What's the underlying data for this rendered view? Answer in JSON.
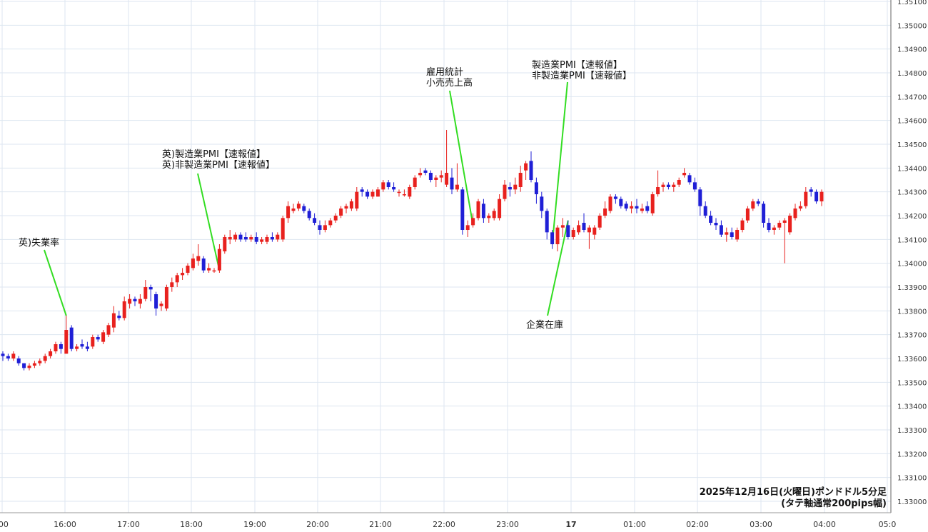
{
  "chart_data": {
    "type": "candlestick",
    "title": "2025年12月16日(火曜日)ポンドドル5分足",
    "subtitle": "(タテ軸通常200pips幅)",
    "y_range": [
      1.3295,
      1.351
    ],
    "y_ticks": [
      "1.33000",
      "1.33100",
      "1.33200",
      "1.33300",
      "1.33400",
      "1.33500",
      "1.33600",
      "1.33700",
      "1.33800",
      "1.33900",
      "1.34000",
      "1.34100",
      "1.34200",
      "1.34300",
      "1.34400",
      "1.34500",
      "1.34600",
      "1.34700",
      "1.34800",
      "1.34900",
      "1.35000",
      "1.35100"
    ],
    "x_ticks": [
      ":00",
      "16:00",
      "17:00",
      "18:00",
      "19:00",
      "20:00",
      "21:00",
      "22:00",
      "23:00",
      "17",
      "01:00",
      "02:00",
      "03:00",
      "04:00",
      "05:0"
    ],
    "interval_minutes": 5,
    "colors": {
      "up": "#e8211e",
      "down": "#1f1fd6",
      "grid": "#dde6f0",
      "annotation_line": "#33dd22"
    },
    "candles": [
      [
        1.3362,
        1.3363,
        1.3359,
        1.3361
      ],
      [
        1.3361,
        1.3362,
        1.3359,
        1.336
      ],
      [
        1.336,
        1.3363,
        1.3359,
        1.3362
      ],
      [
        1.336,
        1.3361,
        1.3357,
        1.3358
      ],
      [
        1.3358,
        1.3358,
        1.3355,
        1.3356
      ],
      [
        1.3356,
        1.3358,
        1.3355,
        1.3357
      ],
      [
        1.3357,
        1.3359,
        1.3356,
        1.3358
      ],
      [
        1.3358,
        1.336,
        1.3357,
        1.3359
      ],
      [
        1.3359,
        1.3362,
        1.3358,
        1.3361
      ],
      [
        1.3361,
        1.3364,
        1.336,
        1.3363
      ],
      [
        1.3363,
        1.3367,
        1.3362,
        1.3366
      ],
      [
        1.3366,
        1.3367,
        1.3362,
        1.3364
      ],
      [
        1.3362,
        1.3378,
        1.3362,
        1.3372
      ],
      [
        1.3373,
        1.3374,
        1.3363,
        1.3364
      ],
      [
        1.3364,
        1.3366,
        1.3363,
        1.3365
      ],
      [
        1.3366,
        1.3368,
        1.3364,
        1.3365
      ],
      [
        1.3365,
        1.3367,
        1.3363,
        1.3364
      ],
      [
        1.3365,
        1.337,
        1.3364,
        1.3369
      ],
      [
        1.3369,
        1.337,
        1.3367,
        1.3368
      ],
      [
        1.3367,
        1.3372,
        1.3366,
        1.3371
      ],
      [
        1.337,
        1.3375,
        1.3369,
        1.3374
      ],
      [
        1.3373,
        1.3382,
        1.3371,
        1.3379
      ],
      [
        1.3378,
        1.338,
        1.3376,
        1.3377
      ],
      [
        1.3377,
        1.3386,
        1.3376,
        1.3384
      ],
      [
        1.3383,
        1.3387,
        1.3381,
        1.3385
      ],
      [
        1.3385,
        1.3386,
        1.3382,
        1.3384
      ],
      [
        1.3383,
        1.3387,
        1.3381,
        1.3385
      ],
      [
        1.3385,
        1.3393,
        1.3384,
        1.339
      ],
      [
        1.339,
        1.3391,
        1.3384,
        1.3389
      ],
      [
        1.3387,
        1.3388,
        1.3378,
        1.3381
      ],
      [
        1.3382,
        1.3384,
        1.338,
        1.3383
      ],
      [
        1.3381,
        1.3391,
        1.338,
        1.339
      ],
      [
        1.339,
        1.3394,
        1.3388,
        1.3392
      ],
      [
        1.3392,
        1.3396,
        1.339,
        1.3395
      ],
      [
        1.3395,
        1.3398,
        1.3393,
        1.3396
      ],
      [
        1.3396,
        1.34,
        1.3395,
        1.3399
      ],
      [
        1.3398,
        1.3404,
        1.3397,
        1.3402
      ],
      [
        1.3401,
        1.3408,
        1.3399,
        1.3403
      ],
      [
        1.3402,
        1.3403,
        1.3396,
        1.3397
      ],
      [
        1.3397,
        1.34,
        1.3396,
        1.3398
      ],
      [
        1.3397,
        1.3398,
        1.3396,
        1.3397
      ],
      [
        1.3397,
        1.3408,
        1.3396,
        1.3406
      ],
      [
        1.3405,
        1.3412,
        1.3404,
        1.3411
      ],
      [
        1.341,
        1.3414,
        1.3408,
        1.3411
      ],
      [
        1.341,
        1.3413,
        1.3409,
        1.3412
      ],
      [
        1.3412,
        1.3413,
        1.3409,
        1.341
      ],
      [
        1.3411,
        1.3413,
        1.3409,
        1.341
      ],
      [
        1.341,
        1.3412,
        1.3409,
        1.3411
      ],
      [
        1.3411,
        1.3413,
        1.3408,
        1.3409
      ],
      [
        1.3409,
        1.3411,
        1.3408,
        1.341
      ],
      [
        1.3409,
        1.3412,
        1.3408,
        1.3411
      ],
      [
        1.3411,
        1.3413,
        1.3409,
        1.341
      ],
      [
        1.341,
        1.3413,
        1.3409,
        1.3412
      ],
      [
        1.341,
        1.342,
        1.3409,
        1.3419
      ],
      [
        1.3419,
        1.3426,
        1.3417,
        1.3424
      ],
      [
        1.3422,
        1.3425,
        1.3421,
        1.3423
      ],
      [
        1.3423,
        1.3426,
        1.3422,
        1.3425
      ],
      [
        1.3424,
        1.3425,
        1.3421,
        1.3422
      ],
      [
        1.3422,
        1.3423,
        1.3418,
        1.3419
      ],
      [
        1.3419,
        1.3421,
        1.3416,
        1.3417
      ],
      [
        1.3416,
        1.3418,
        1.3412,
        1.3414
      ],
      [
        1.3414,
        1.3418,
        1.3413,
        1.3416
      ],
      [
        1.3416,
        1.3419,
        1.3415,
        1.3418
      ],
      [
        1.3418,
        1.3421,
        1.3417,
        1.342
      ],
      [
        1.342,
        1.3424,
        1.3419,
        1.3423
      ],
      [
        1.3423,
        1.3425,
        1.3421,
        1.3424
      ],
      [
        1.3423,
        1.3427,
        1.3422,
        1.3426
      ],
      [
        1.3423,
        1.3432,
        1.3422,
        1.343
      ],
      [
        1.3431,
        1.3432,
        1.3428,
        1.343
      ],
      [
        1.343,
        1.3431,
        1.3427,
        1.3428
      ],
      [
        1.3428,
        1.3431,
        1.3427,
        1.343
      ],
      [
        1.3428,
        1.3432,
        1.3428,
        1.3431
      ],
      [
        1.3431,
        1.3435,
        1.343,
        1.3434
      ],
      [
        1.3434,
        1.3435,
        1.3431,
        1.3432
      ],
      [
        1.3432,
        1.3434,
        1.343,
        1.3431
      ],
      [
        1.343,
        1.3431,
        1.3428,
        1.343
      ],
      [
        1.3429,
        1.3431,
        1.3428,
        1.3429
      ],
      [
        1.3428,
        1.3433,
        1.3427,
        1.3432
      ],
      [
        1.3432,
        1.3437,
        1.3431,
        1.3436
      ],
      [
        1.3437,
        1.344,
        1.3436,
        1.3438
      ],
      [
        1.3439,
        1.344,
        1.3437,
        1.3438
      ],
      [
        1.3438,
        1.3439,
        1.3434,
        1.3435
      ],
      [
        1.3435,
        1.3437,
        1.3432,
        1.3436
      ],
      [
        1.3436,
        1.3439,
        1.3434,
        1.3437
      ],
      [
        1.3433,
        1.3456,
        1.3432,
        1.3438
      ],
      [
        1.3436,
        1.344,
        1.3429,
        1.3431
      ],
      [
        1.3431,
        1.3442,
        1.343,
        1.3433
      ],
      [
        1.3431,
        1.3432,
        1.3412,
        1.3414
      ],
      [
        1.3414,
        1.3418,
        1.3411,
        1.3416
      ],
      [
        1.3416,
        1.3421,
        1.3415,
        1.3419
      ],
      [
        1.3419,
        1.3427,
        1.3418,
        1.3426
      ],
      [
        1.3425,
        1.3427,
        1.3417,
        1.3419
      ],
      [
        1.3419,
        1.3421,
        1.3417,
        1.342
      ],
      [
        1.3419,
        1.3423,
        1.3418,
        1.3422
      ],
      [
        1.3419,
        1.3429,
        1.3418,
        1.3427
      ],
      [
        1.3427,
        1.3435,
        1.3426,
        1.3433
      ],
      [
        1.3432,
        1.3434,
        1.3428,
        1.3431
      ],
      [
        1.3431,
        1.3436,
        1.3429,
        1.3433
      ],
      [
        1.3432,
        1.3441,
        1.343,
        1.3438
      ],
      [
        1.3439,
        1.3443,
        1.3435,
        1.3442
      ],
      [
        1.3443,
        1.3447,
        1.3434,
        1.3435
      ],
      [
        1.3434,
        1.3436,
        1.3425,
        1.3429
      ],
      [
        1.3428,
        1.343,
        1.3419,
        1.3422
      ],
      [
        1.3422,
        1.3423,
        1.341,
        1.3413
      ],
      [
        1.3413,
        1.3414,
        1.3406,
        1.3408
      ],
      [
        1.3408,
        1.3416,
        1.3405,
        1.3415
      ],
      [
        1.3415,
        1.3419,
        1.3411,
        1.3416
      ],
      [
        1.3416,
        1.3418,
        1.341,
        1.3411
      ],
      [
        1.3411,
        1.3415,
        1.341,
        1.3414
      ],
      [
        1.3413,
        1.3418,
        1.3412,
        1.3416
      ],
      [
        1.3417,
        1.3421,
        1.3413,
        1.3414
      ],
      [
        1.3413,
        1.3416,
        1.3406,
        1.3415
      ],
      [
        1.3412,
        1.3416,
        1.341,
        1.3415
      ],
      [
        1.3415,
        1.3421,
        1.3414,
        1.342
      ],
      [
        1.342,
        1.3426,
        1.3419,
        1.3423
      ],
      [
        1.3422,
        1.3429,
        1.3421,
        1.3428
      ],
      [
        1.3428,
        1.3429,
        1.3425,
        1.3427
      ],
      [
        1.3427,
        1.3428,
        1.3423,
        1.3424
      ],
      [
        1.3425,
        1.3426,
        1.3422,
        1.3423
      ],
      [
        1.3423,
        1.3426,
        1.3421,
        1.3424
      ],
      [
        1.3424,
        1.3427,
        1.3421,
        1.3423
      ],
      [
        1.3422,
        1.3425,
        1.3421,
        1.3423
      ],
      [
        1.3424,
        1.3426,
        1.3421,
        1.3422
      ],
      [
        1.3421,
        1.343,
        1.342,
        1.3429
      ],
      [
        1.3429,
        1.3439,
        1.3428,
        1.3432
      ],
      [
        1.3432,
        1.3434,
        1.343,
        1.3433
      ],
      [
        1.3433,
        1.3434,
        1.3431,
        1.3432
      ],
      [
        1.3432,
        1.3434,
        1.343,
        1.3433
      ],
      [
        1.3433,
        1.3436,
        1.3432,
        1.3435
      ],
      [
        1.3437,
        1.344,
        1.3436,
        1.3438
      ],
      [
        1.3437,
        1.3438,
        1.3433,
        1.3434
      ],
      [
        1.3434,
        1.3436,
        1.343,
        1.3431
      ],
      [
        1.3431,
        1.3432,
        1.342,
        1.3424
      ],
      [
        1.3424,
        1.3426,
        1.3419,
        1.342
      ],
      [
        1.342,
        1.3422,
        1.3416,
        1.3417
      ],
      [
        1.3417,
        1.3419,
        1.3414,
        1.3416
      ],
      [
        1.3416,
        1.3418,
        1.3411,
        1.3412
      ],
      [
        1.3412,
        1.3415,
        1.3409,
        1.3413
      ],
      [
        1.3413,
        1.3415,
        1.341,
        1.3411
      ],
      [
        1.341,
        1.3415,
        1.3409,
        1.3414
      ],
      [
        1.3414,
        1.3419,
        1.3413,
        1.3418
      ],
      [
        1.3418,
        1.3424,
        1.3417,
        1.3423
      ],
      [
        1.3423,
        1.3427,
        1.3422,
        1.3426
      ],
      [
        1.3426,
        1.3427,
        1.3424,
        1.3425
      ],
      [
        1.3425,
        1.3426,
        1.3415,
        1.3417
      ],
      [
        1.3417,
        1.3419,
        1.3413,
        1.3414
      ],
      [
        1.3414,
        1.3416,
        1.3412,
        1.3415
      ],
      [
        1.3415,
        1.3418,
        1.3414,
        1.3417
      ],
      [
        1.3417,
        1.3419,
        1.34,
        1.3418
      ],
      [
        1.3413,
        1.3421,
        1.3412,
        1.342
      ],
      [
        1.3419,
        1.3425,
        1.3418,
        1.3423
      ],
      [
        1.3423,
        1.3426,
        1.3422,
        1.3424
      ],
      [
        1.3424,
        1.3432,
        1.3423,
        1.343
      ],
      [
        1.3431,
        1.3432,
        1.3428,
        1.343
      ],
      [
        1.343,
        1.3431,
        1.3425,
        1.3426
      ],
      [
        1.3426,
        1.3431,
        1.3424,
        1.343
      ]
    ]
  },
  "annotations": [
    {
      "lines": [
        "英)失業率"
      ]
    },
    {
      "lines": [
        "英)製造業PMI【速報値】",
        "英)非製造業PMI【速報値】"
      ]
    },
    {
      "lines": [
        "雇用統計",
        "小売売上高"
      ]
    },
    {
      "lines": [
        "製造業PMI【速報値】",
        "非製造業PMI【速報値】"
      ]
    },
    {
      "lines": [
        "企業在庫"
      ]
    }
  ]
}
